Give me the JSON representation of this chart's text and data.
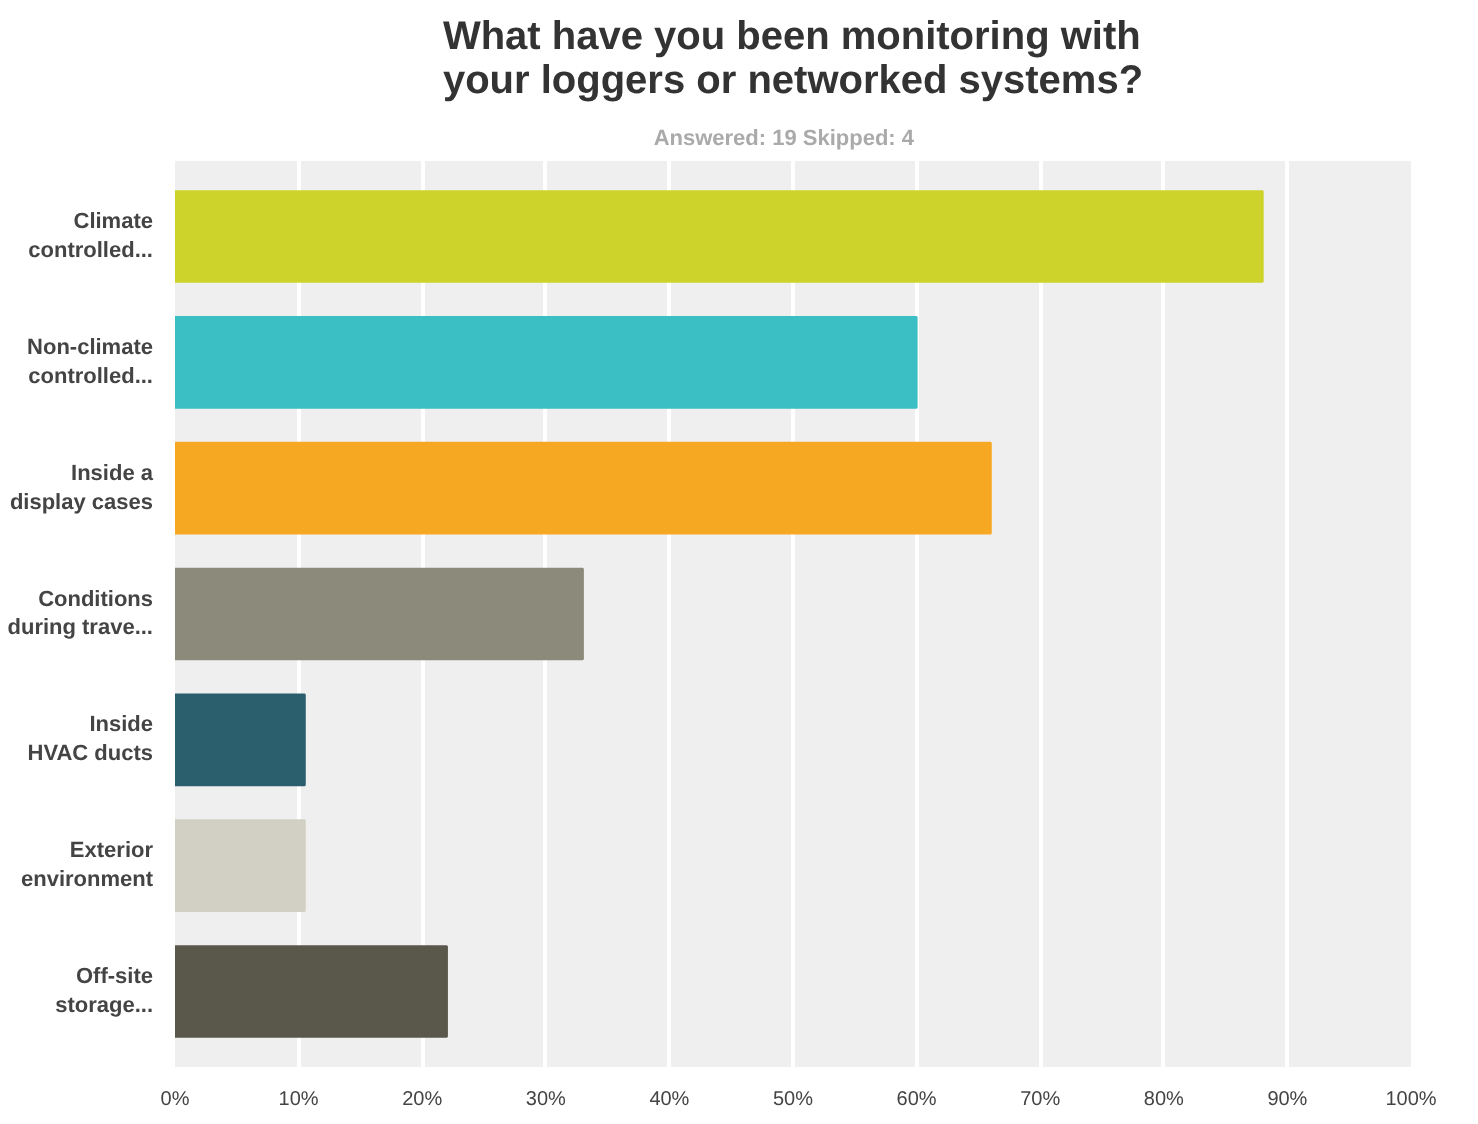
{
  "chart_data": {
    "type": "bar",
    "orientation": "horizontal",
    "title": "What have you been monitoring with your loggers or networked systems?",
    "subtitle": "Answered: 19    Skipped: 4",
    "categories": [
      "Climate controlled...",
      "Non-climate controlled...",
      "Inside a display cases",
      "Conditions during trave...",
      "Inside HVAC ducts",
      "Exterior environment",
      "Off-site storage..."
    ],
    "values": [
      88,
      60,
      66,
      33,
      10.5,
      10.5,
      22
    ],
    "colors": [
      "#cdd32a",
      "#3bbfc4",
      "#f7a823",
      "#8c8a7b",
      "#2b5f6e",
      "#d2d0c4",
      "#5a574b"
    ],
    "xlim": [
      0,
      100
    ],
    "xticks": [
      {
        "value": 0,
        "label": "0%"
      },
      {
        "value": 10,
        "label": "10%"
      },
      {
        "value": 20,
        "label": "20%"
      },
      {
        "value": 30,
        "label": "30%"
      },
      {
        "value": 40,
        "label": "40%"
      },
      {
        "value": 50,
        "label": "50%"
      },
      {
        "value": 60,
        "label": "60%"
      },
      {
        "value": 70,
        "label": "70%"
      },
      {
        "value": 80,
        "label": "80%"
      },
      {
        "value": 90,
        "label": "90%"
      },
      {
        "value": 100,
        "label": "100%"
      }
    ],
    "grid": "x",
    "legend": false
  }
}
